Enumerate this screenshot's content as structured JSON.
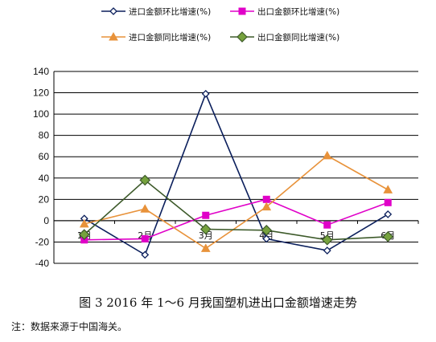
{
  "chart_data": {
    "type": "line",
    "title": "",
    "categories": [
      "1月",
      "2月",
      "3月",
      "4月",
      "5月",
      "6月"
    ],
    "ylim": [
      -40,
      140
    ],
    "yticks": [
      -40,
      -20,
      0,
      20,
      40,
      60,
      80,
      100,
      120,
      140
    ],
    "grid": true,
    "legend_placement": "top",
    "series": [
      {
        "name": "进口金额环比增速(%)",
        "color": "#0b1f5c",
        "marker": "diamond-open",
        "values": [
          2,
          -32,
          119,
          -17,
          -28,
          6
        ]
      },
      {
        "name": "出口金额环比增速(%)",
        "color": "#e000c8",
        "marker": "square",
        "values": [
          -18,
          -17,
          5,
          20,
          -4,
          17
        ]
      },
      {
        "name": "进口金额同比增速(%)",
        "color": "#e8923a",
        "marker": "triangle",
        "values": [
          -3,
          11,
          -26,
          13,
          61,
          29
        ]
      },
      {
        "name": "出口金额同比增速(%)",
        "color": "#3d5a2a",
        "marker": "diamond",
        "values": [
          -13,
          38,
          -8,
          -9,
          -18,
          -15
        ]
      }
    ]
  },
  "caption": "图 3   2016 年 1～6 月我国塑机进出口金额增速走势",
  "note": "注：数据来源于中国海关。"
}
